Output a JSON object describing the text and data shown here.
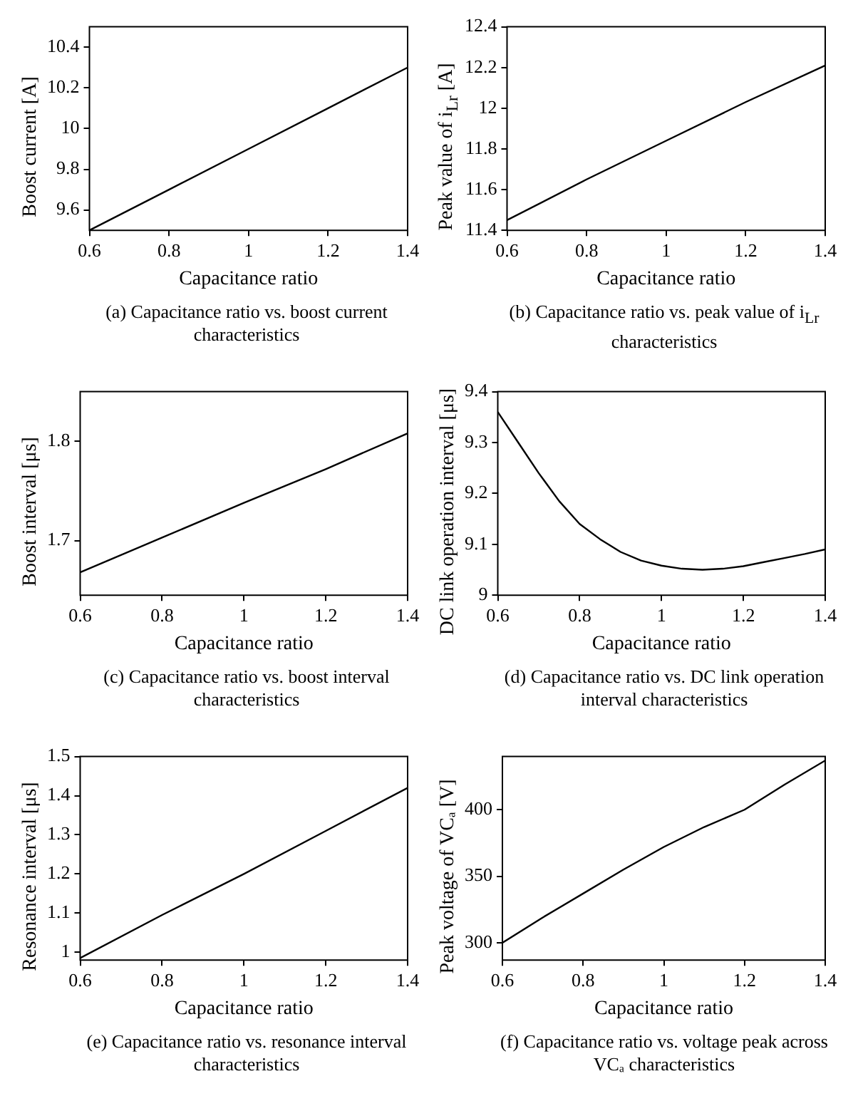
{
  "chart_data": [
    {
      "type": "line",
      "title": "(a) Capacitance ratio vs. boost current characteristics",
      "xlabel": "Capacitance ratio",
      "ylabel": "Boost current [A]",
      "x": [
        0.6,
        0.8,
        1.0,
        1.2,
        1.4
      ],
      "series": [
        {
          "color": "#000000",
          "values": [
            9.5,
            9.7,
            9.9,
            10.1,
            10.3
          ]
        }
      ],
      "xlim": [
        0.6,
        1.4
      ],
      "xticks": [
        0.6,
        0.8,
        1,
        1.2,
        1.4
      ],
      "ylim": [
        9.5,
        10.5
      ],
      "yticks": [
        9.6,
        9.8,
        10,
        10.2,
        10.4
      ],
      "grid": false,
      "legend": false,
      "marker": "none",
      "line_style": "solid"
    },
    {
      "type": "line",
      "title": "(b) Capacitance ratio vs. peak value of i$_{Lr}$ characteristics",
      "xlabel": "Capacitance ratio",
      "ylabel": "Peak value of i$_{Lr}$ [A]",
      "x": [
        0.6,
        0.8,
        1.0,
        1.2,
        1.4
      ],
      "series": [
        {
          "color": "#000000",
          "values": [
            11.45,
            11.65,
            11.84,
            12.03,
            12.21
          ]
        }
      ],
      "xlim": [
        0.6,
        1.4
      ],
      "xticks": [
        0.6,
        0.8,
        1,
        1.2,
        1.4
      ],
      "ylim": [
        11.4,
        12.4
      ],
      "yticks": [
        11.4,
        11.6,
        11.8,
        12,
        12.2,
        12.4
      ],
      "grid": false,
      "legend": false,
      "marker": "none",
      "line_style": "solid"
    },
    {
      "type": "line",
      "title": "(c) Capacitance ratio vs. boost interval characteristics",
      "xlabel": "Capacitance ratio",
      "ylabel": "Boost interval [μs]",
      "x": [
        0.6,
        0.8,
        1.0,
        1.2,
        1.4
      ],
      "series": [
        {
          "color": "#000000",
          "values": [
            1.668,
            1.703,
            1.738,
            1.772,
            1.808
          ]
        }
      ],
      "xlim": [
        0.6,
        1.4
      ],
      "xticks": [
        0.6,
        0.8,
        1,
        1.2,
        1.4
      ],
      "ylim": [
        1.645,
        1.85
      ],
      "yticks": [
        1.7,
        1.8
      ],
      "grid": false,
      "legend": false,
      "marker": "none",
      "line_style": "solid"
    },
    {
      "type": "line",
      "title": "(d) Capacitance ratio vs. DC link operation interval characteristics",
      "xlabel": "Capacitance ratio",
      "ylabel": "DC link operation interval [μs]",
      "x": [
        0.6,
        0.65,
        0.7,
        0.75,
        0.8,
        0.85,
        0.9,
        0.95,
        1.0,
        1.05,
        1.1,
        1.15,
        1.2,
        1.25,
        1.3,
        1.35,
        1.4
      ],
      "series": [
        {
          "color": "#000000",
          "values": [
            9.36,
            9.3,
            9.24,
            9.185,
            9.14,
            9.11,
            9.085,
            9.068,
            9.058,
            9.052,
            9.05,
            9.052,
            9.057,
            9.065,
            9.073,
            9.081,
            9.09
          ]
        }
      ],
      "xlim": [
        0.6,
        1.4
      ],
      "xticks": [
        0.6,
        0.8,
        1,
        1.2,
        1.4
      ],
      "ylim": [
        9,
        9.4
      ],
      "yticks": [
        9,
        9.1,
        9.2,
        9.3,
        9.4
      ],
      "grid": false,
      "legend": false,
      "marker": "none",
      "line_style": "solid"
    },
    {
      "type": "line",
      "title": "(e) Capacitance ratio vs. resonance interval characteristics",
      "xlabel": "Capacitance ratio",
      "ylabel": "Resonance interval [μs]",
      "x": [
        0.6,
        0.8,
        1.0,
        1.2,
        1.4
      ],
      "series": [
        {
          "color": "#000000",
          "values": [
            0.985,
            1.095,
            1.2,
            1.31,
            1.42
          ]
        }
      ],
      "xlim": [
        0.6,
        1.4
      ],
      "xticks": [
        0.6,
        0.8,
        1,
        1.2,
        1.4
      ],
      "ylim": [
        0.98,
        1.5
      ],
      "yticks": [
        1,
        1.1,
        1.2,
        1.3,
        1.4,
        1.5
      ],
      "grid": false,
      "legend": false,
      "marker": "none",
      "line_style": "solid"
    },
    {
      "type": "line",
      "title": "(f) Capacitance ratio vs. voltage peak across VCₐ characteristics",
      "xlabel": "Capacitance ratio",
      "ylabel": "Peak voltage of VCₐ [V]",
      "x": [
        0.6,
        0.7,
        0.8,
        0.9,
        1.0,
        1.1,
        1.2,
        1.3,
        1.4
      ],
      "series": [
        {
          "color": "#000000",
          "values": [
            300,
            319,
            337,
            355,
            372,
            387,
            400,
            419,
            437
          ]
        }
      ],
      "xlim": [
        0.6,
        1.4
      ],
      "xticks": [
        0.6,
        0.8,
        1,
        1.2,
        1.4
      ],
      "ylim": [
        287,
        440
      ],
      "yticks": [
        300,
        350,
        400
      ],
      "grid": false,
      "legend": false,
      "marker": "none",
      "line_style": "solid"
    }
  ]
}
